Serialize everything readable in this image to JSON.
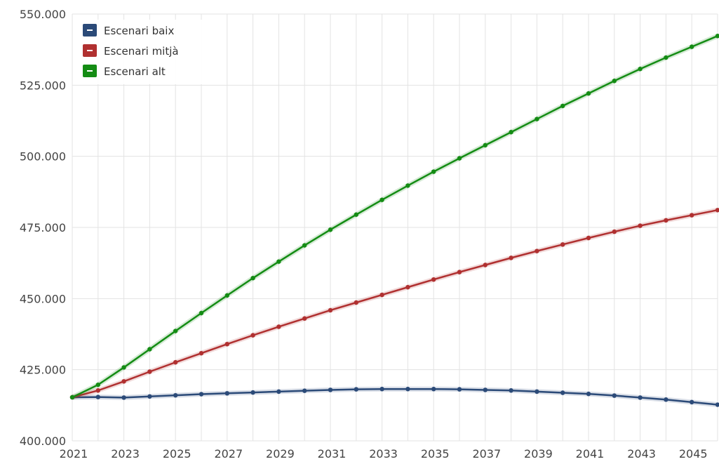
{
  "chart_data": {
    "type": "line",
    "x": [
      2021,
      2022,
      2023,
      2024,
      2025,
      2026,
      2027,
      2028,
      2029,
      2030,
      2031,
      2032,
      2033,
      2034,
      2035,
      2036,
      2037,
      2038,
      2039,
      2040,
      2041,
      2042,
      2043,
      2044,
      2045,
      2046
    ],
    "xticks": [
      "2021",
      "2023",
      "2025",
      "2027",
      "2029",
      "2031",
      "2033",
      "2035",
      "2037",
      "2039",
      "2041",
      "2043",
      "2045"
    ],
    "yticks": [
      "400.000",
      "425.000",
      "450.000",
      "475.000",
      "500.000",
      "525.000",
      "550.000"
    ],
    "xlim": [
      2021,
      2046
    ],
    "ylim": [
      400000,
      550000
    ],
    "grid": true,
    "legend_position": "top-left",
    "series": [
      {
        "name": "Escenari baix",
        "color": "#2b4a78",
        "values": [
          415300,
          415400,
          415200,
          415600,
          416000,
          416400,
          416700,
          417000,
          417300,
          417600,
          417900,
          418100,
          418200,
          418200,
          418200,
          418100,
          417900,
          417700,
          417300,
          416900,
          416500,
          415900,
          415200,
          414500,
          413600,
          412700
        ]
      },
      {
        "name": "Escenari mitjà",
        "color": "#b03030",
        "values": [
          415300,
          417700,
          420900,
          424300,
          427600,
          430800,
          434000,
          437100,
          440100,
          443000,
          445900,
          448600,
          451300,
          454000,
          456700,
          459300,
          461800,
          464300,
          466700,
          469000,
          471300,
          473500,
          475600,
          477500,
          479300,
          481100
        ]
      },
      {
        "name": "Escenari alt",
        "color": "#148c14",
        "values": [
          415300,
          419700,
          425800,
          432200,
          438600,
          444900,
          451100,
          457200,
          463000,
          468700,
          474200,
          479500,
          484700,
          489700,
          494600,
          499300,
          503900,
          508500,
          513100,
          517700,
          522100,
          526500,
          530700,
          534700,
          538500,
          542300
        ]
      }
    ]
  }
}
